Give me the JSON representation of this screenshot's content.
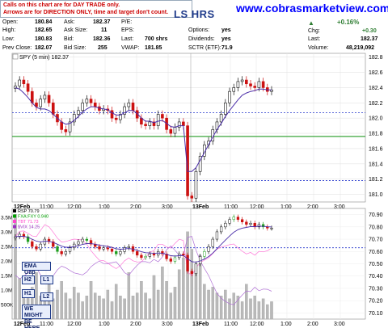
{
  "notice": {
    "line1": "Calls on this chart are for DAY TRADE only.",
    "line2": "Arrows are for DIRECTION ONLY, time and target don't count."
  },
  "brand": "www.cobrasmarketview.com",
  "ticker_partial": "LS HRS",
  "quote": {
    "open_label": "Open:",
    "open": "180.84",
    "high_label": "High:",
    "high": "182.65",
    "low_label": "Low:",
    "low": "180.83",
    "prev_label": "Prev Close:",
    "prev": "182.07",
    "ask_label": "Ask:",
    "ask": "182.37",
    "asksize_label": "Ask Size:",
    "asksize": "11",
    "bid_label": "Bid:",
    "bid": "182.36",
    "bidsize_label": "Bid Size:",
    "bidsize": "255",
    "pe_label": "P/E:",
    "pe": "",
    "eps_label": "EPS:",
    "eps": "",
    "last_label": "Last:",
    "last": "700 shrs",
    "vwap_label": "VWAP:",
    "vwap": "181.85",
    "options_label": "Options:",
    "options": "yes",
    "dividends_label": "Dividends:",
    "dividends": "yes",
    "sctr_label": "SCTR (ETF):",
    "sctr": "71.9",
    "pct_change": "+0.16%",
    "chg_label": "Chg:",
    "chg": "+0.30",
    "last2_label": "Last:",
    "last2": "182.37",
    "volume_label": "Volume:",
    "volume": "48,219,092",
    "up_color": "#2e7d32"
  },
  "buttons": {
    "ema_gap": "EMA Gap",
    "h2": "H2",
    "l1": "L1",
    "h1": "H1",
    "l2": "L2",
    "might_be_here": "WE MIGHT BE HERE."
  },
  "chart_data": [
    {
      "type": "candlestick",
      "legend": "SPY (5 min) 182.37",
      "y_ticks": [
        "182.8",
        "182.6",
        "182.4",
        "182.2",
        "182.0",
        "181.8",
        "181.6",
        "181.4",
        "181.2",
        "181.0"
      ],
      "ylim": [
        180.9,
        182.85
      ],
      "x_ticks": [
        "12Feb",
        "11:00",
        "12:00",
        "1:00",
        "2:00",
        "3:00",
        "13Feb",
        "11:00",
        "12:00",
        "1:00",
        "2:00",
        "3:00"
      ],
      "reference_lines": {
        "blue_dashed_upper": 182.07,
        "green_support": 181.76,
        "blue_dashed_lower": 181.18
      },
      "close_path": [
        182.42,
        182.5,
        182.45,
        182.35,
        182.2,
        182.15,
        182.25,
        182.3,
        182.2,
        182.05,
        181.95,
        181.85,
        181.82,
        181.95,
        182.05,
        182.1,
        182.2,
        182.25,
        182.2,
        182.15,
        182.1,
        182.12,
        182.1,
        182.0,
        181.98,
        182.05,
        182.15,
        182.2,
        182.1,
        182.0,
        181.92,
        181.9,
        181.95,
        181.9,
        182.05,
        182.0,
        181.85,
        181.8,
        181.88,
        181.95,
        181.9,
        180.98,
        180.95,
        181.3,
        181.5,
        181.65,
        181.7,
        181.85,
        181.95,
        182.05,
        182.2,
        182.35,
        182.4,
        182.48,
        182.5,
        182.45,
        182.42,
        182.4,
        182.48,
        182.4,
        182.35,
        182.37
      ],
      "ema_path": [
        182.4,
        182.38,
        182.33,
        182.27,
        182.2,
        182.14,
        182.12,
        182.12,
        182.1,
        182.05,
        182.0,
        181.95,
        181.92,
        181.93,
        181.97,
        182.02,
        182.08,
        182.12,
        182.15,
        182.15,
        182.13,
        182.12,
        182.11,
        182.07,
        182.04,
        182.04,
        182.07,
        182.1,
        182.1,
        182.06,
        182.0,
        181.96,
        181.96,
        181.94,
        181.96,
        181.97,
        181.93,
        181.89,
        181.88,
        181.9,
        181.9,
        181.3,
        181.3,
        181.35,
        181.45,
        181.55,
        181.65,
        181.75,
        181.85,
        181.93,
        182.02,
        182.1,
        182.17,
        182.24,
        182.3,
        182.33,
        182.35,
        182.36,
        182.38,
        182.38,
        182.37,
        182.37
      ]
    },
    {
      "type": "line",
      "legend_series": [
        {
          "name": "RSP 70.79",
          "color": "#000000"
        },
        {
          "name": "FXA:FXY 0.940",
          "color": "#00a000"
        },
        {
          "name": "TBT 71.73",
          "color": "#ff44cc"
        },
        {
          "name": "$VIX 14.25",
          "color": "#9a30c0"
        }
      ],
      "y_ticks_right": [
        "70.90",
        "70.80",
        "70.70",
        "70.60",
        "70.50",
        "70.40",
        "70.30",
        "70.20",
        "70.10"
      ],
      "ylim": [
        70.05,
        70.95
      ],
      "volume_ticks_left": [
        "3.5M",
        "3.0M",
        "2.5M",
        "2.0M",
        "1.5M",
        "1.0M",
        "500K"
      ],
      "x_ticks": [
        "12Feb",
        "11:00",
        "12:00",
        "1:00",
        "2:00",
        "3:00",
        "13Feb",
        "11:00",
        "12:00",
        "1:00",
        "2:00",
        "3:00"
      ],
      "reference_line": 70.63,
      "rsp_path": [
        70.72,
        70.74,
        70.72,
        70.68,
        70.64,
        70.62,
        70.66,
        70.7,
        70.68,
        70.64,
        70.6,
        70.58,
        70.6,
        70.63,
        70.66,
        70.68,
        70.7,
        70.69,
        70.66,
        70.64,
        70.62,
        70.63,
        70.62,
        70.6,
        70.58,
        70.6,
        70.63,
        70.64,
        70.6,
        70.57,
        70.55,
        70.56,
        70.58,
        70.57,
        70.6,
        70.58,
        70.54,
        70.52,
        70.55,
        70.58,
        70.57,
        70.44,
        70.42,
        70.5,
        70.56,
        70.6,
        70.64,
        70.7,
        70.76,
        70.8,
        70.83,
        70.86,
        70.88,
        70.86,
        70.84,
        70.82,
        70.83,
        70.8,
        70.82,
        70.8,
        70.79,
        70.79
      ],
      "volume_m": [
        3.6,
        1.4,
        1.0,
        0.9,
        1.1,
        1.6,
        0.8,
        0.9,
        1.2,
        0.7,
        1.0,
        1.3,
        0.9,
        0.7,
        1.1,
        0.9,
        0.6,
        0.8,
        1.3,
        0.9,
        0.8,
        0.7,
        1.0,
        0.6,
        1.2,
        0.8,
        0.7,
        1.6,
        0.8,
        0.9,
        1.3,
        0.9,
        0.7,
        1.5,
        1.0,
        1.8,
        1.3,
        0.9,
        1.1,
        1.7,
        2.1,
        3.0,
        2.4,
        1.9,
        2.2,
        1.2,
        1.0,
        1.1,
        0.9,
        0.8,
        1.0,
        0.7,
        0.9,
        0.8,
        0.6,
        1.2,
        0.7,
        0.8,
        0.6,
        0.7,
        0.5,
        0.6
      ]
    }
  ]
}
